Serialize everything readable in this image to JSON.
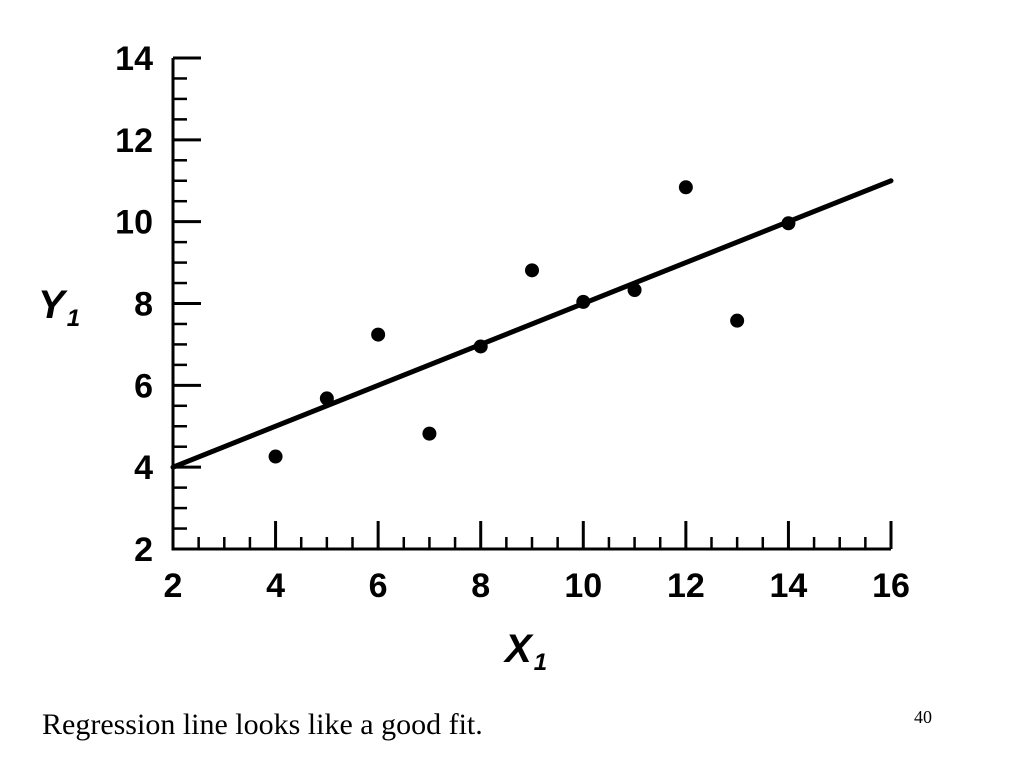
{
  "chart_data": {
    "type": "scatter",
    "x": [
      4,
      5,
      6,
      7,
      8,
      9,
      10,
      11,
      12,
      13,
      14
    ],
    "y": [
      4.26,
      5.68,
      7.24,
      4.82,
      6.95,
      8.81,
      8.04,
      8.33,
      10.84,
      7.58,
      9.96
    ],
    "regression_line": {
      "x": [
        2,
        16
      ],
      "y": [
        4.0,
        11.0
      ]
    },
    "xlim": [
      2,
      16
    ],
    "ylim": [
      2,
      14
    ],
    "x_ticks": [
      2,
      4,
      6,
      8,
      10,
      12,
      14,
      16
    ],
    "y_ticks": [
      2,
      4,
      6,
      8,
      10,
      12,
      14
    ],
    "xlabel": {
      "main": "X",
      "sub": "1"
    },
    "ylabel": {
      "main": "Y",
      "sub": "1"
    },
    "grid": false
  },
  "caption": "Regression line looks like a good fit.",
  "page_number": "40"
}
